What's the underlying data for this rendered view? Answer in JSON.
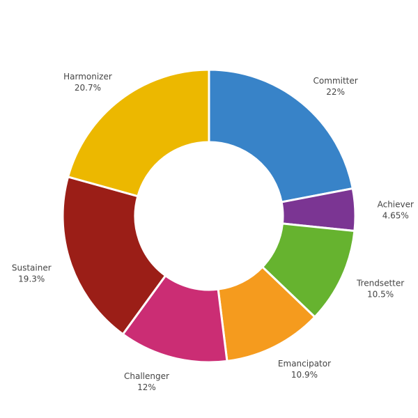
{
  "chart_data": {
    "type": "pie",
    "donut": true,
    "start_angle_deg": 0,
    "direction": "clockwise",
    "title": "",
    "legend": "none",
    "slices": [
      {
        "label": "Committer",
        "value": 22,
        "percent_text": "22%",
        "color": "#3883c8"
      },
      {
        "label": "Achiever",
        "value": 4.65,
        "percent_text": "4.65%",
        "color": "#7b3593"
      },
      {
        "label": "Trendsetter",
        "value": 10.5,
        "percent_text": "10.5%",
        "color": "#66b32f"
      },
      {
        "label": "Emancipator",
        "value": 10.9,
        "percent_text": "10.9%",
        "color": "#f59b1e"
      },
      {
        "label": "Challenger",
        "value": 12,
        "percent_text": "12%",
        "color": "#cb2d74"
      },
      {
        "label": "Sustainer",
        "value": 19.3,
        "percent_text": "19.3%",
        "color": "#9b1e17"
      },
      {
        "label": "Harmonizer",
        "value": 20.7,
        "percent_text": "20.7%",
        "color": "#ecb800"
      }
    ]
  }
}
